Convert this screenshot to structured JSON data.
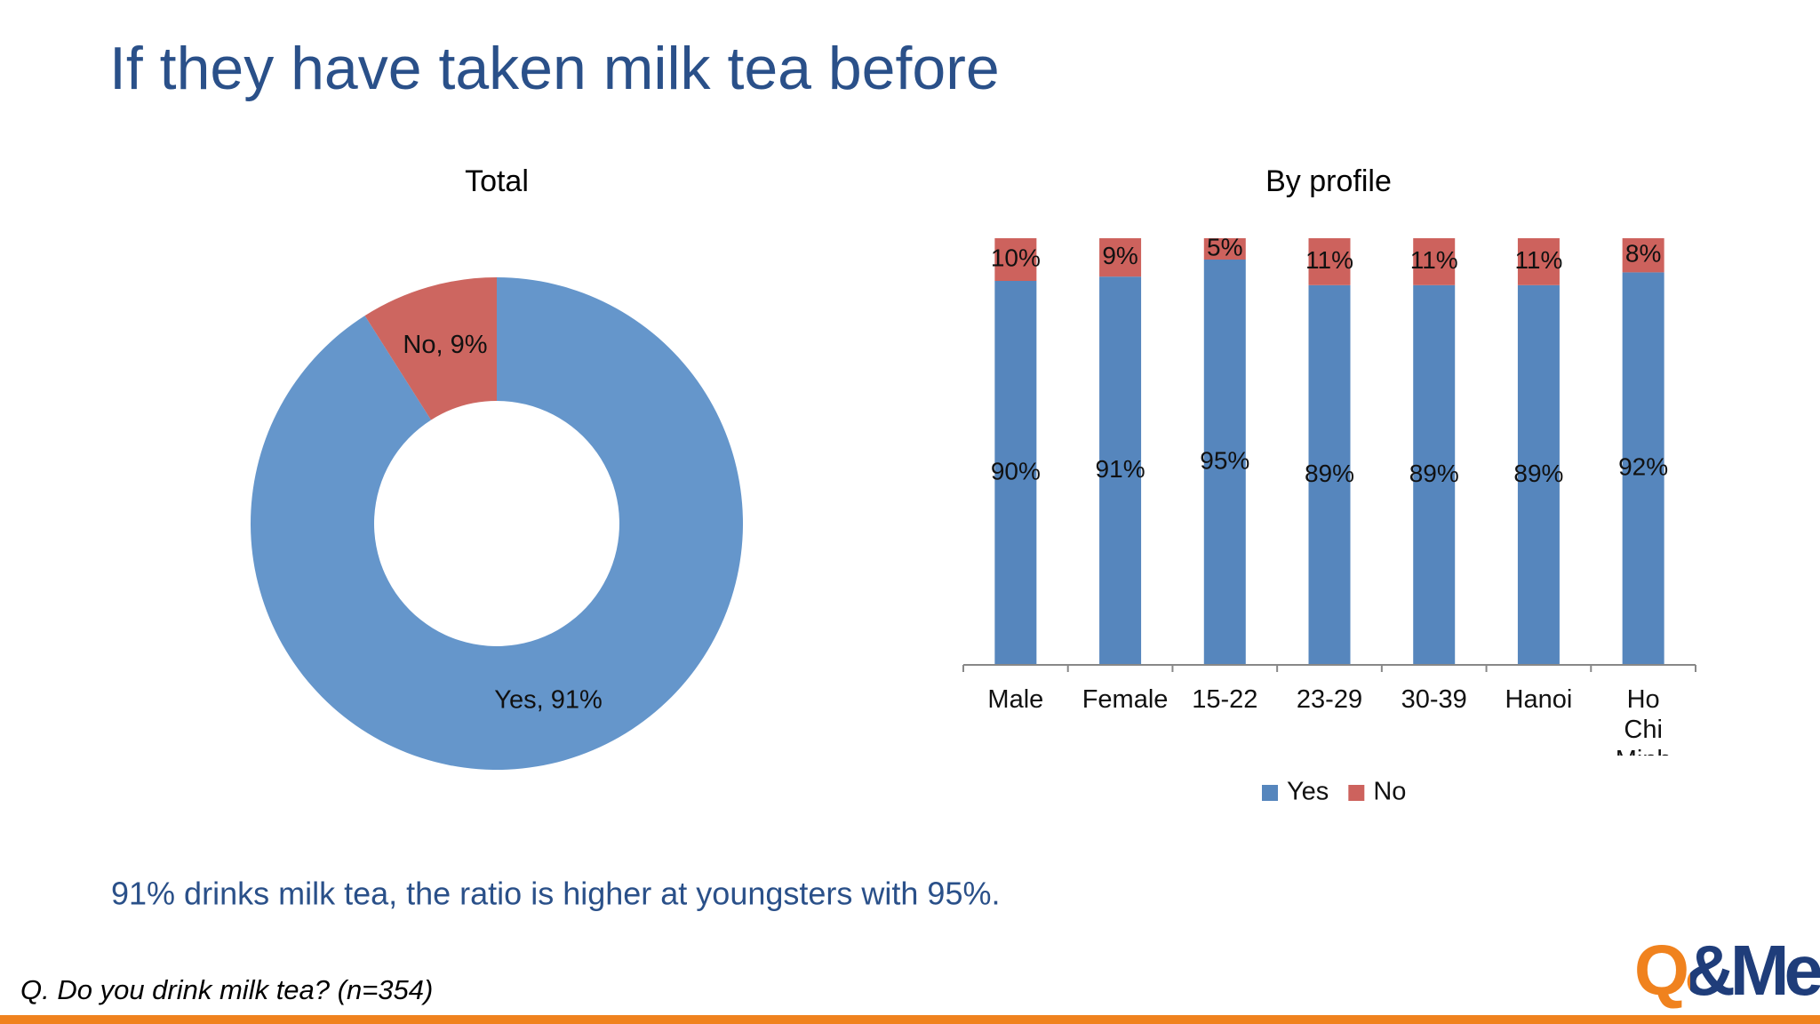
{
  "title": "If they have taken milk tea before",
  "chart_data": [
    {
      "type": "donut",
      "title": "Total",
      "categories": [
        "Yes",
        "No"
      ],
      "values": [
        91,
        9
      ],
      "value_labels": [
        "Yes, 91%",
        "No, 9%"
      ],
      "colors": [
        "#6596cb",
        "#cd6660"
      ]
    },
    {
      "type": "bar",
      "title": "By profile",
      "stacked": true,
      "categories": [
        "Male",
        "Female",
        "15-22",
        "23-29",
        "30-39",
        "Hanoi",
        "Ho Chi Minh"
      ],
      "ylim": [
        0,
        100
      ],
      "series": [
        {
          "name": "Yes",
          "color": "#5686bd",
          "values": [
            90,
            91,
            95,
            89,
            89,
            89,
            92
          ],
          "value_labels": [
            "90%",
            "91%",
            "95%",
            "89%",
            "89%",
            "89%",
            "92%"
          ]
        },
        {
          "name": "No",
          "color": "#cd625d",
          "values": [
            10,
            9,
            5,
            11,
            11,
            11,
            8
          ],
          "value_labels": [
            "10%",
            "9%",
            "5%",
            "11%",
            "11%",
            "11%",
            "8%"
          ]
        }
      ],
      "legend": "bottom"
    }
  ],
  "summary": "91% drinks milk tea, the ratio is higher at youngsters with 95%.",
  "footnote": "Q. Do you drink milk tea? (n=354)",
  "logo": "Q&Me"
}
